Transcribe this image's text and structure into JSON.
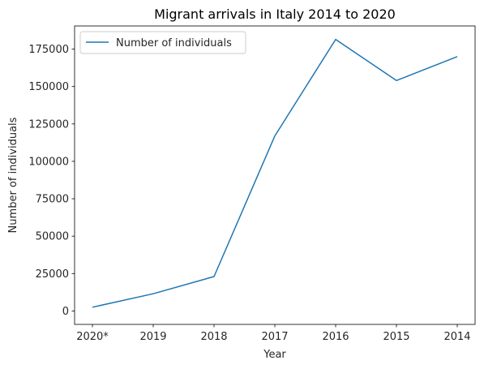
{
  "chart_data": {
    "type": "line",
    "title": "Migrant arrivals in Italy 2014 to 2020",
    "xlabel": "Year",
    "ylabel": "Number of individuals",
    "categories": [
      "2020*",
      "2019",
      "2018",
      "2017",
      "2016",
      "2015",
      "2014"
    ],
    "series": [
      {
        "name": "Number of individuals",
        "values": [
          2500,
          11500,
          23000,
          117000,
          181500,
          154000,
          170000
        ],
        "color": "#1f77b4"
      }
    ],
    "ylim": [
      -9000,
      190500
    ],
    "yticks": [
      0,
      25000,
      50000,
      75000,
      100000,
      125000,
      150000,
      175000
    ],
    "ytick_labels": [
      "0",
      "25000",
      "50000",
      "75000",
      "100000",
      "125000",
      "150000",
      "175000"
    ],
    "grid": false,
    "legend": "upper left"
  }
}
